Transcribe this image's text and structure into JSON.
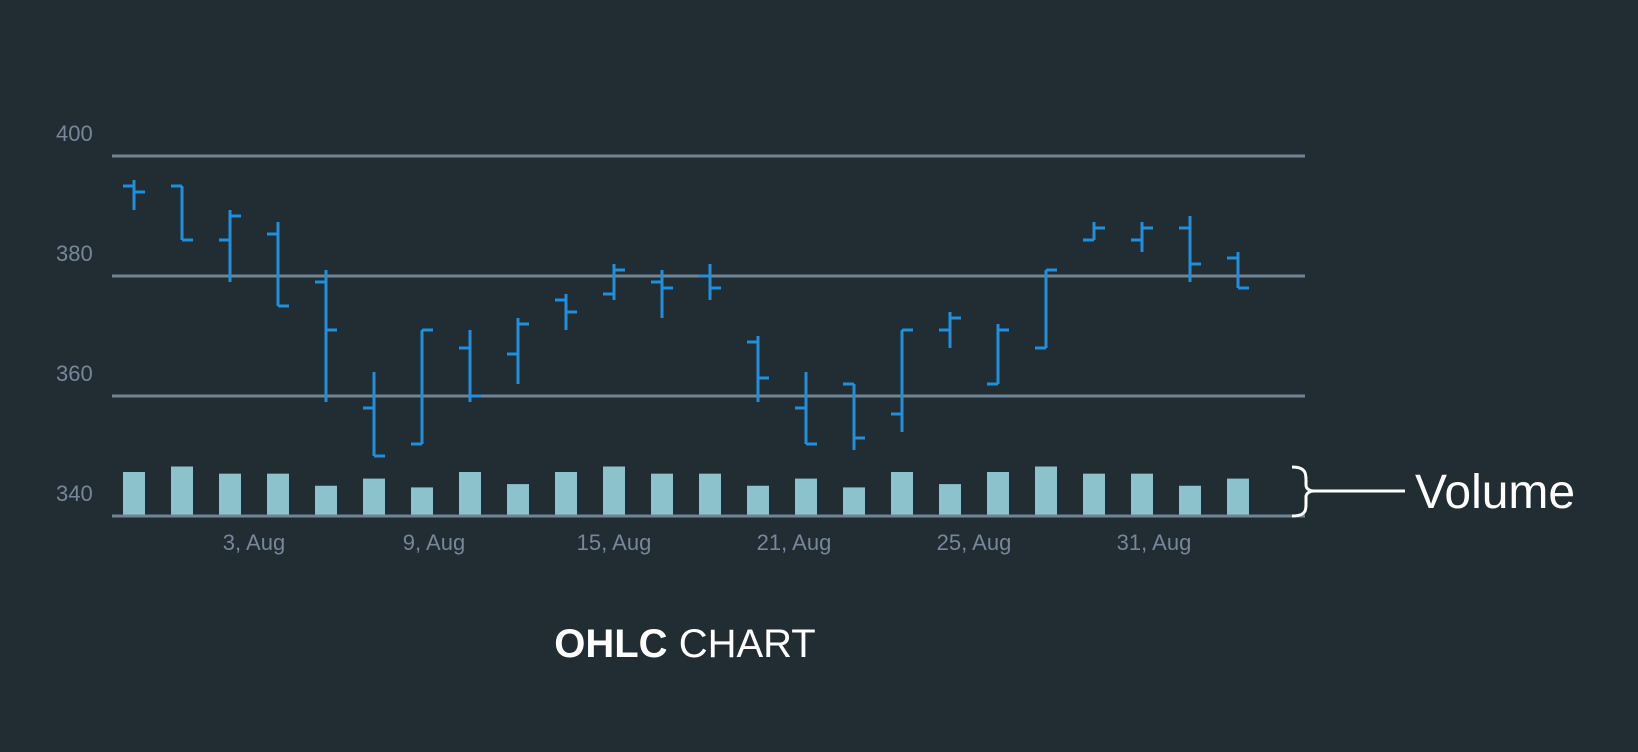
{
  "caption": {
    "bold": "OHLC",
    "rest": " CHART"
  },
  "annotation": {
    "volume": "Volume"
  },
  "colors": {
    "background": "#222c33",
    "ohlc": "#1f8fe0",
    "volume": "#8cc2cc",
    "grid": "#6f8596",
    "tick_text": "#76879a",
    "annotation": "#ffffff"
  },
  "chart_data": {
    "type": "ohlc",
    "ylim": [
      340,
      400
    ],
    "yticks": [
      400,
      380,
      360,
      340
    ],
    "x_tick_labels": [
      {
        "label": "3, Aug",
        "index": 2.5
      },
      {
        "label": "9, Aug",
        "index": 6.25
      },
      {
        "label": "15, Aug",
        "index": 10
      },
      {
        "label": "21, Aug",
        "index": 13.75
      },
      {
        "label": "25, Aug",
        "index": 17.5
      },
      {
        "label": "31, Aug",
        "index": 21.25
      }
    ],
    "grid": true,
    "bars": [
      {
        "open": 395,
        "high": 396,
        "low": 391,
        "close": 394
      },
      {
        "open": 395,
        "high": 395,
        "low": 386,
        "close": 386
      },
      {
        "open": 386,
        "high": 391,
        "low": 379,
        "close": 390
      },
      {
        "open": 387,
        "high": 389,
        "low": 375,
        "close": 375
      },
      {
        "open": 379,
        "high": 381,
        "low": 359,
        "close": 371
      },
      {
        "open": 358,
        "high": 364,
        "low": 350,
        "close": 350
      },
      {
        "open": 352,
        "high": 371,
        "low": 352,
        "close": 371
      },
      {
        "open": 368,
        "high": 371,
        "low": 359,
        "close": 360
      },
      {
        "open": 367,
        "high": 373,
        "low": 362,
        "close": 372
      },
      {
        "open": 376,
        "high": 377,
        "low": 371,
        "close": 374
      },
      {
        "open": 377,
        "high": 382,
        "low": 376,
        "close": 381
      },
      {
        "open": 379,
        "high": 381,
        "low": 373,
        "close": 378
      },
      {
        "open": 380,
        "high": 382,
        "low": 376,
        "close": 378
      },
      {
        "open": 369,
        "high": 370,
        "low": 359,
        "close": 363
      },
      {
        "open": 358,
        "high": 364,
        "low": 352,
        "close": 352
      },
      {
        "open": 362,
        "high": 362,
        "low": 351,
        "close": 353
      },
      {
        "open": 357,
        "high": 371,
        "low": 354,
        "close": 371
      },
      {
        "open": 371,
        "high": 374,
        "low": 368,
        "close": 373
      },
      {
        "open": 362,
        "high": 372,
        "low": 362,
        "close": 371
      },
      {
        "open": 368,
        "high": 381,
        "low": 368,
        "close": 381
      },
      {
        "open": 386,
        "high": 389,
        "low": 386,
        "close": 388
      },
      {
        "open": 386,
        "high": 389,
        "low": 384,
        "close": 388
      },
      {
        "open": 388,
        "high": 390,
        "low": 379,
        "close": 382
      },
      {
        "open": 383,
        "high": 384,
        "low": 378,
        "close": 378
      }
    ],
    "volume": [
      0.8,
      0.9,
      0.77,
      0.77,
      0.55,
      0.68,
      0.52,
      0.8,
      0.58,
      0.8,
      0.9,
      0.77,
      0.77,
      0.55,
      0.68,
      0.52,
      0.8,
      0.58,
      0.8,
      0.9,
      0.77,
      0.77,
      0.55,
      0.68
    ]
  }
}
